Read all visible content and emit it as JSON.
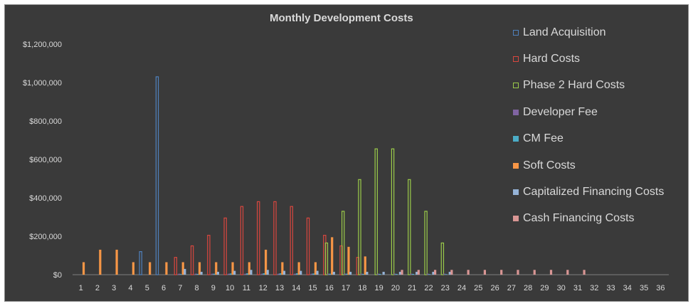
{
  "chart_data": {
    "type": "bar",
    "title": "Monthly Development Costs",
    "xlabel": "",
    "ylabel": "",
    "ylim": [
      0,
      1200000
    ],
    "yticks": [
      0,
      200000,
      400000,
      600000,
      800000,
      1000000,
      1200000
    ],
    "ytick_labels": [
      "$0",
      "$200,000",
      "$400,000",
      "$600,000",
      "$800,000",
      "$1,000,000",
      "$1,200,000"
    ],
    "grid": false,
    "legend_position": "right",
    "categories": [
      "1",
      "2",
      "3",
      "4",
      "5",
      "6",
      "7",
      "8",
      "9",
      "10",
      "11",
      "12",
      "13",
      "14",
      "15",
      "16",
      "17",
      "18",
      "19",
      "20",
      "21",
      "22",
      "23",
      "24",
      "25",
      "26",
      "27",
      "28",
      "29",
      "30",
      "31",
      "32",
      "33",
      "34",
      "35",
      "36"
    ],
    "series": [
      {
        "name": "Land Acquisition",
        "color": "#4f81bd",
        "style": "outline",
        "values": [
          0,
          0,
          0,
          0,
          120000,
          1030000,
          0,
          0,
          0,
          0,
          0,
          0,
          0,
          0,
          0,
          0,
          0,
          0,
          0,
          0,
          0,
          0,
          0,
          0,
          0,
          0,
          0,
          0,
          0,
          0,
          0,
          0,
          0,
          0,
          0,
          0
        ]
      },
      {
        "name": "Hard Costs",
        "color": "#d9473f",
        "style": "outline",
        "values": [
          0,
          0,
          0,
          0,
          0,
          0,
          90000,
          150000,
          205000,
          295000,
          355000,
          380000,
          380000,
          355000,
          295000,
          205000,
          150000,
          90000,
          0,
          0,
          0,
          0,
          0,
          0,
          0,
          0,
          0,
          0,
          0,
          0,
          0,
          0,
          0,
          0,
          0,
          0
        ]
      },
      {
        "name": "Phase 2 Hard Costs",
        "color": "#9bcb4a",
        "style": "outline",
        "values": [
          0,
          0,
          0,
          0,
          0,
          0,
          0,
          0,
          0,
          0,
          0,
          0,
          0,
          0,
          0,
          165000,
          330000,
          495000,
          655000,
          655000,
          495000,
          330000,
          165000,
          0,
          0,
          0,
          0,
          0,
          0,
          0,
          0,
          0,
          0,
          0,
          0,
          0
        ]
      },
      {
        "name": "Developer Fee",
        "color": "#8064a2",
        "style": "solid",
        "values": [
          0,
          0,
          0,
          0,
          0,
          0,
          5000,
          5000,
          5000,
          5000,
          5000,
          5000,
          5000,
          5000,
          5000,
          5000,
          5000,
          5000,
          5000,
          5000,
          5000,
          5000,
          5000,
          0,
          0,
          0,
          0,
          0,
          0,
          0,
          0,
          0,
          0,
          0,
          0,
          0
        ]
      },
      {
        "name": "CM Fee",
        "color": "#4bacc6",
        "style": "solid",
        "values": [
          0,
          0,
          0,
          0,
          0,
          0,
          3000,
          4000,
          5000,
          6000,
          7000,
          7000,
          7000,
          7000,
          6000,
          5000,
          5000,
          4000,
          4000,
          4000,
          4000,
          3000,
          3000,
          0,
          0,
          0,
          0,
          0,
          0,
          0,
          0,
          0,
          0,
          0,
          0,
          0
        ]
      },
      {
        "name": "Soft Costs",
        "color": "#f79646",
        "style": "solid",
        "values": [
          65000,
          130000,
          130000,
          65000,
          65000,
          65000,
          65000,
          65000,
          65000,
          65000,
          65000,
          130000,
          65000,
          65000,
          65000,
          195000,
          145000,
          95000,
          0,
          0,
          0,
          0,
          0,
          0,
          0,
          0,
          0,
          0,
          0,
          0,
          0,
          0,
          0,
          0,
          0,
          0
        ]
      },
      {
        "name": "Capitalized Financing Costs",
        "color": "#95b3d7",
        "style": "solid",
        "values": [
          0,
          0,
          0,
          0,
          0,
          0,
          30000,
          15000,
          15000,
          20000,
          25000,
          25000,
          20000,
          20000,
          20000,
          15000,
          15000,
          15000,
          15000,
          15000,
          15000,
          15000,
          15000,
          0,
          0,
          0,
          0,
          0,
          0,
          0,
          0,
          0,
          0,
          0,
          0,
          0
        ]
      },
      {
        "name": "Cash Financing Costs",
        "color": "#d99694",
        "style": "solid",
        "values": [
          0,
          0,
          0,
          0,
          0,
          0,
          0,
          0,
          0,
          0,
          0,
          0,
          0,
          0,
          0,
          0,
          0,
          0,
          0,
          25000,
          25000,
          25000,
          25000,
          25000,
          25000,
          25000,
          25000,
          25000,
          25000,
          25000,
          25000,
          0,
          0,
          0,
          0,
          0
        ]
      }
    ]
  }
}
